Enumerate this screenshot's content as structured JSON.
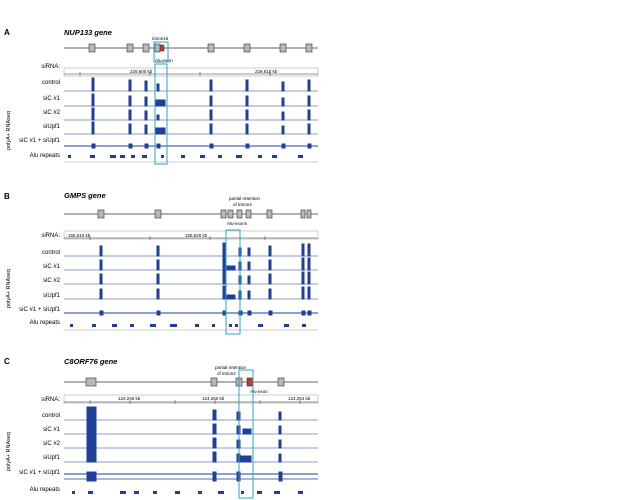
{
  "colors": {
    "track": "#1f3f9a",
    "highlight": "#2ba6c4",
    "exon_fill": "#b8b8b8",
    "exon_red": "#c83232"
  },
  "common": {
    "sirna_label": "siRNA:",
    "conditions": [
      "control",
      "siC #1",
      "siC #2",
      "siUpf1",
      "siC #1 + siUpf1"
    ],
    "polya_label": "polyA+ RNAseq",
    "alu_label": "Alu repeats"
  },
  "panels": [
    {
      "letter": "A",
      "gene": "NUP133 gene",
      "annotation_lines": [
        "intron16"
      ],
      "highlight_label": "Alu-exon",
      "coord_labels": [
        "229,600 kb",
        "229,610 kb"
      ]
    },
    {
      "letter": "B",
      "gene": "GMPS gene",
      "annotation_lines": [
        "partial retention",
        "of intron4"
      ],
      "highlight_label": "Alu-exons",
      "coord_labels": [
        "155,610 kb",
        "155,620 kb"
      ]
    },
    {
      "letter": "C",
      "gene": "C8ORF76 gene",
      "annotation_lines": [
        "partial retention",
        "of intron2"
      ],
      "highlight_label": "Alu-exon",
      "coord_labels": [
        "124,246 kb",
        "124,250 kb",
        "124,254 kb"
      ]
    }
  ]
}
